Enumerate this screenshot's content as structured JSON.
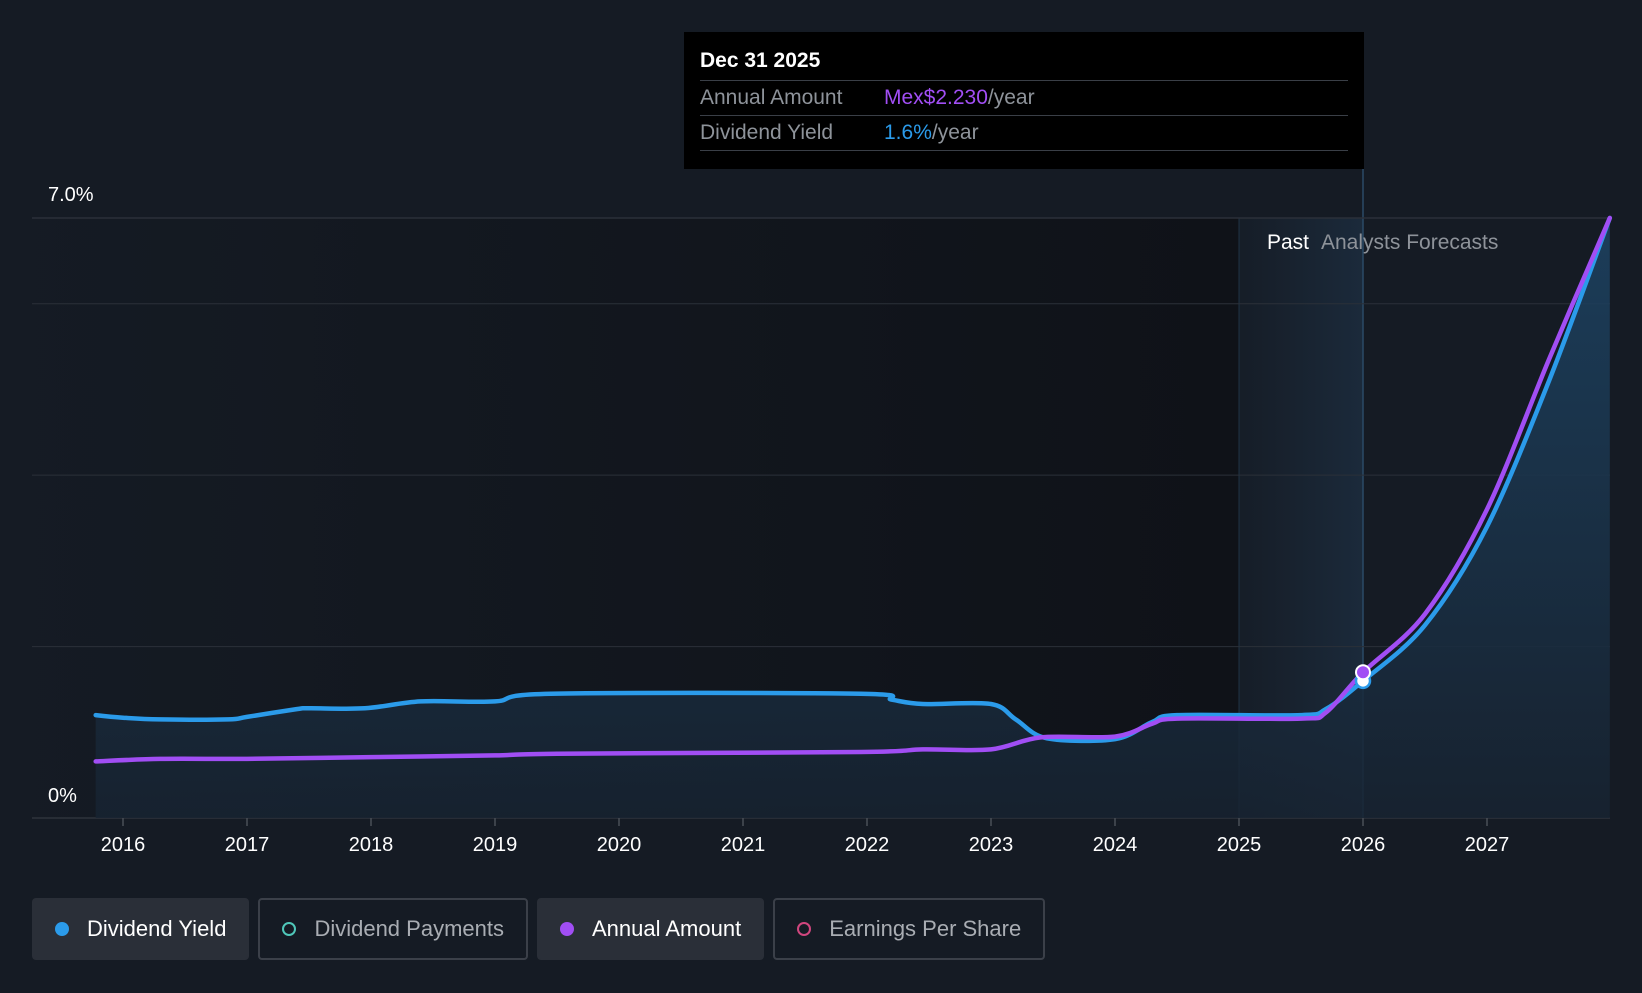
{
  "chart_data": {
    "type": "line",
    "title": "",
    "ylabel": "",
    "xlabel": "",
    "ylim": [
      0,
      7.0
    ],
    "xlim": [
      2015.75,
      2027.99
    ],
    "y_tick_labels": {
      "top": "7.0%",
      "bottom": "0%"
    },
    "y_gridlines": [
      0,
      2.0,
      4.0,
      6.0,
      7.0
    ],
    "x_ticks": [
      2016,
      2017,
      2018,
      2019,
      2020,
      2021,
      2022,
      2023,
      2024,
      2025,
      2026,
      2027
    ],
    "x_tick_labels": [
      "2016",
      "2017",
      "2018",
      "2019",
      "2020",
      "2021",
      "2022",
      "2023",
      "2024",
      "2025",
      "2026",
      "2027"
    ],
    "past_label": "Past",
    "forecast_label": "Analysts Forecasts",
    "past_forecast_boundary": 2026.0,
    "past_band_start": 2025.0,
    "series": [
      {
        "name": "Dividend Yield",
        "color": "#2b9bea",
        "filled": true,
        "points": [
          [
            2015.78,
            1.2
          ],
          [
            2016.0,
            1.17
          ],
          [
            2016.3,
            1.15
          ],
          [
            2016.85,
            1.15
          ],
          [
            2017.0,
            1.18
          ],
          [
            2017.4,
            1.27
          ],
          [
            2017.5,
            1.28
          ],
          [
            2017.95,
            1.28
          ],
          [
            2018.4,
            1.36
          ],
          [
            2019.0,
            1.36
          ],
          [
            2019.45,
            1.45
          ],
          [
            2021.95,
            1.45
          ],
          [
            2022.2,
            1.38
          ],
          [
            2022.45,
            1.33
          ],
          [
            2023.0,
            1.33
          ],
          [
            2023.2,
            1.15
          ],
          [
            2023.45,
            0.93
          ],
          [
            2024.0,
            0.92
          ],
          [
            2024.3,
            1.12
          ],
          [
            2024.5,
            1.2
          ],
          [
            2025.5,
            1.2
          ],
          [
            2025.7,
            1.27
          ],
          [
            2026.0,
            1.6
          ],
          [
            2026.5,
            2.25
          ],
          [
            2027.0,
            3.4
          ],
          [
            2027.5,
            5.1
          ],
          [
            2027.99,
            7.0
          ]
        ]
      },
      {
        "name": "Annual Amount",
        "color": "#a14ef4",
        "filled": false,
        "points": [
          [
            2015.78,
            0.66
          ],
          [
            2016.3,
            0.69
          ],
          [
            2017.0,
            0.69
          ],
          [
            2018.0,
            0.71
          ],
          [
            2019.0,
            0.73
          ],
          [
            2019.5,
            0.75
          ],
          [
            2021.95,
            0.77
          ],
          [
            2022.45,
            0.8
          ],
          [
            2023.0,
            0.8
          ],
          [
            2023.4,
            0.94
          ],
          [
            2024.0,
            0.95
          ],
          [
            2024.3,
            1.1
          ],
          [
            2024.5,
            1.16
          ],
          [
            2025.5,
            1.16
          ],
          [
            2025.7,
            1.23
          ],
          [
            2026.0,
            1.7
          ],
          [
            2026.5,
            2.38
          ],
          [
            2027.0,
            3.6
          ],
          [
            2027.5,
            5.35
          ],
          [
            2027.99,
            7.0
          ]
        ]
      }
    ],
    "highlight": {
      "x": 2026.0,
      "yield_value": 1.6,
      "annual_value": 1.7
    }
  },
  "tooltip": {
    "date": "Dec 31 2025",
    "rows": [
      {
        "label": "Annual Amount",
        "value": "Mex$2.230",
        "unit": "/year",
        "color": "#a14ef4"
      },
      {
        "label": "Dividend Yield",
        "value": "1.6%",
        "unit": "/year",
        "color": "#2b9bea"
      }
    ]
  },
  "legend": [
    {
      "label": "Dividend Yield",
      "color": "#2b9bea",
      "active": true,
      "filled": true
    },
    {
      "label": "Dividend Payments",
      "color": "#4fc7b9",
      "active": false,
      "filled": false
    },
    {
      "label": "Annual Amount",
      "color": "#a14ef4",
      "active": true,
      "filled": true
    },
    {
      "label": "Earnings Per Share",
      "color": "#d0467e",
      "active": false,
      "filled": false
    }
  ]
}
